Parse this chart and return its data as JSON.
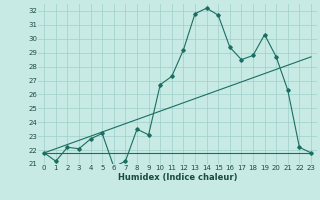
{
  "xlabel": "Humidex (Indice chaleur)",
  "xlim": [
    -0.5,
    23.5
  ],
  "ylim": [
    21.0,
    32.5
  ],
  "yticks": [
    21,
    22,
    23,
    24,
    25,
    26,
    27,
    28,
    29,
    30,
    31,
    32
  ],
  "xticks": [
    0,
    1,
    2,
    3,
    4,
    5,
    6,
    7,
    8,
    9,
    10,
    11,
    12,
    13,
    14,
    15,
    16,
    17,
    18,
    19,
    20,
    21,
    22,
    23
  ],
  "bg_color": "#c8eae4",
  "line_color": "#1a6e62",
  "grid_color": "#9dcfca",
  "line1_x": [
    0,
    1,
    2,
    3,
    4,
    5,
    6,
    7,
    8,
    9,
    10,
    11,
    12,
    13,
    14,
    15,
    16,
    17,
    18,
    19,
    20,
    21,
    22,
    23
  ],
  "line1_y": [
    21.8,
    21.2,
    22.2,
    22.1,
    22.8,
    23.2,
    20.8,
    21.2,
    23.5,
    23.1,
    26.7,
    27.3,
    29.2,
    31.8,
    32.2,
    31.7,
    29.4,
    28.5,
    28.8,
    30.3,
    28.7,
    26.3,
    22.2,
    21.8
  ],
  "line2_x": [
    0,
    23
  ],
  "line2_y": [
    21.8,
    21.8
  ],
  "line3_x": [
    0,
    23
  ],
  "line3_y": [
    21.8,
    28.7
  ]
}
